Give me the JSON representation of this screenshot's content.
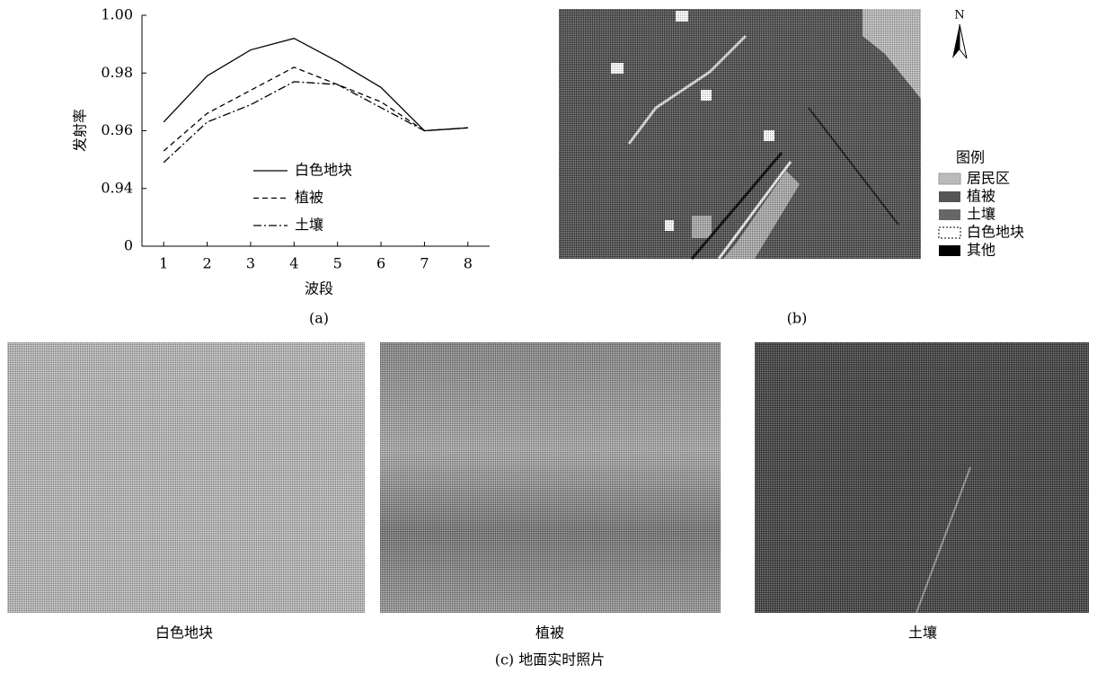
{
  "chart_data": {
    "type": "line",
    "x": [
      1,
      2,
      3,
      4,
      5,
      6,
      7,
      8
    ],
    "xlim": [
      0.5,
      8.5
    ],
    "xticks": [
      1,
      2,
      3,
      4,
      5,
      6,
      7,
      8
    ],
    "ylim": [
      0,
      1
    ],
    "y_break": [
      0,
      0.94
    ],
    "yticks": [
      0,
      0.94,
      0.96,
      0.98,
      {
        "value": 1,
        "label": "1.00"
      }
    ],
    "xlabel": "波段",
    "ylabel": "发射率",
    "series": [
      {
        "name": "白色地块",
        "color": "#000000",
        "dash": "none",
        "values": [
          0.963,
          0.979,
          0.988,
          0.992,
          0.984,
          0.975,
          0.96,
          0.961
        ]
      },
      {
        "name": "植被",
        "color": "#000000",
        "dash": "6,4",
        "values": [
          0.953,
          0.966,
          0.974,
          0.982,
          0.976,
          0.97,
          0.96,
          0.961
        ]
      },
      {
        "name": "土壤",
        "color": "#000000",
        "dash": "9,3,2,3",
        "values": [
          0.949,
          0.963,
          0.969,
          0.977,
          0.976,
          0.968,
          0.96,
          0.961
        ]
      }
    ]
  },
  "map": {
    "north": "N",
    "legend_title": "图例",
    "legend": [
      "居民区",
      "植被",
      "土壤",
      "白色地块",
      "其他"
    ]
  },
  "panels": {
    "a": "(a)",
    "b": "(b)",
    "c": "(c) 地面实时照片"
  },
  "photos": [
    "白色地块",
    "植被",
    "土壤"
  ]
}
